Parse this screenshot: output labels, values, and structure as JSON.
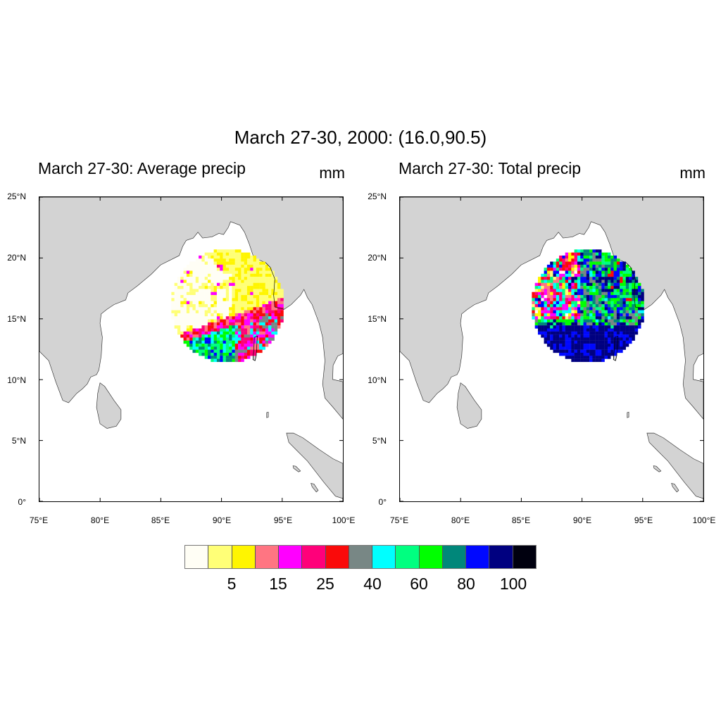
{
  "title": "March 27-30, 2000: (16.0,90.5)",
  "colorbar": {
    "colors": [
      "#fffef5",
      "#ffff77",
      "#fff500",
      "#ff7582",
      "#ff00ff",
      "#ff007a",
      "#fa0a0a",
      "#788785",
      "#00ffff",
      "#00ff80",
      "#00ff00",
      "#00877a",
      "#0008ff",
      "#000080",
      "#00000f"
    ],
    "labels": [
      "5",
      "15",
      "25",
      "40",
      "60",
      "80",
      "100"
    ]
  },
  "chart_data": [
    {
      "type": "heatmap",
      "title": "March 27-30: Average precip",
      "units": "mm",
      "xlim": [
        75,
        100
      ],
      "ylim": [
        0,
        25
      ],
      "xticks": [
        "75°E",
        "80°E",
        "85°E",
        "90°E",
        "95°E",
        "100°E"
      ],
      "yticks": [
        "25°N",
        "20°N",
        "15°N",
        "10°N",
        "5°N",
        "0°"
      ],
      "center": [
        90.5,
        16.0
      ]
    },
    {
      "type": "heatmap",
      "title": "March 27-30: Total precip",
      "units": "mm",
      "xlim": [
        75,
        100
      ],
      "ylim": [
        0,
        25
      ],
      "xticks": [
        "75°E",
        "80°E",
        "85°E",
        "90°E",
        "95°E",
        "100°E"
      ],
      "yticks": [
        "25°N",
        "20°N",
        "15°N",
        "10°N",
        "5°N",
        "0°"
      ],
      "center": [
        90.5,
        16.0
      ]
    }
  ]
}
